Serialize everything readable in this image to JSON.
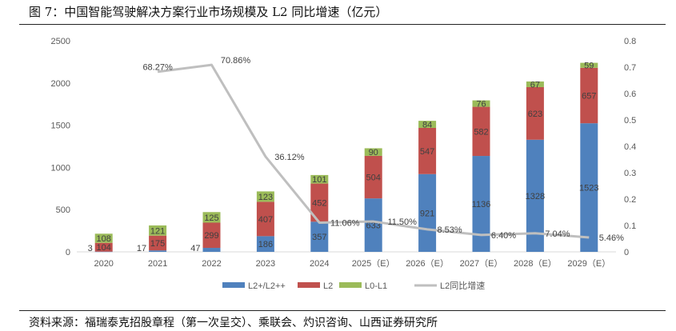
{
  "title": "图 7：中国智能驾驶解决方案行业市场规模及 L2 同比增速（亿元）",
  "source": "资料来源：福瑞泰克招股章程（第一次呈交）、乘联会、灼识咨询、山西证券研究所",
  "chart_data": {
    "type": "bar",
    "stacked": true,
    "categories": [
      "2020",
      "2021",
      "2022",
      "2023",
      "2024",
      "2025（E）",
      "2026（E）",
      "2027（E）",
      "2028（E）",
      "2029（E）"
    ],
    "series": [
      {
        "name": "L2+/L2++",
        "type": "bar",
        "color": "#4F81BD",
        "values": [
          3,
          17,
          47,
          186,
          357,
          633,
          921,
          1136,
          1328,
          1523
        ]
      },
      {
        "name": "L2",
        "type": "bar",
        "color": "#C0504D",
        "values": [
          104,
          175,
          299,
          407,
          452,
          504,
          547,
          582,
          623,
          657
        ]
      },
      {
        "name": "L0-L1",
        "type": "bar",
        "color": "#9BBB59",
        "values": [
          108,
          121,
          125,
          123,
          101,
          90,
          84,
          76,
          67,
          59
        ]
      },
      {
        "name": "L2同比增速",
        "type": "line",
        "axis": "right",
        "color": "#BFBFBF",
        "values": [
          null,
          0.6827,
          0.7086,
          0.3612,
          0.1106,
          0.115,
          0.0853,
          0.064,
          0.0704,
          0.0546
        ],
        "labels": [
          "",
          "68.27%",
          "70.86%",
          "36.12%",
          "11.06%",
          "11.50%",
          "8.53%",
          "6.40%",
          "7.04%",
          "5.46%"
        ]
      }
    ],
    "ylim": [
      0,
      2500
    ],
    "yticks": [
      "0",
      "500",
      "1000",
      "1500",
      "2000",
      "2500"
    ],
    "y2lim": [
      0,
      0.8
    ],
    "y2ticks": [
      "0",
      "0.1",
      "0.2",
      "0.3",
      "0.4",
      "0.5",
      "0.6",
      "0.7",
      "0.8"
    ],
    "grid": false,
    "legend": "bottom"
  }
}
